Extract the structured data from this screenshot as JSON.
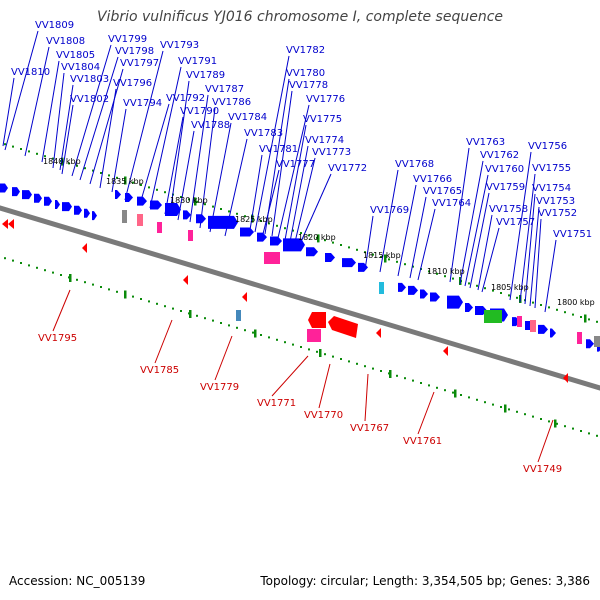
{
  "title": "Vibrio vulnificus YJ016 chromosome I, complete sequence",
  "accession": "Accession: NC_005139",
  "topology": "Topology: circular; Length: 3,354,505 bp; Genes: 3,386",
  "colors": {
    "forward_gene": "#0000ff",
    "reverse_gene": "#ff0000",
    "backbone": "#7a7a7a",
    "tick": "#0a8a0a",
    "label_forward": "#0000cc",
    "label_reverse": "#cc0000",
    "rna_magenta": "#ff2299",
    "rna_green": "#22bb22",
    "rna_cyan": "#22bbdd",
    "gray_feature": "#888888"
  },
  "scale_labels": [
    "1840 kbp",
    "1835 kbp",
    "1830 kbp",
    "1825 kbp",
    "1820 kbp",
    "1815 kbp",
    "1810 kbp",
    "1805 kbp",
    "1800 kbp"
  ],
  "top_labels": [
    "VV1809",
    "VV1808",
    "VV1805",
    "VV1804",
    "VV1810",
    "VV1803",
    "VV1802",
    "VV1799",
    "VV1798",
    "VV1797",
    "VV1796",
    "VV1794",
    "VV1793",
    "VV1791",
    "VV1789",
    "VV1792",
    "VV1790",
    "VV1788",
    "VV1787",
    "VV1786",
    "VV1784",
    "VV1783",
    "VV1782",
    "VV1780",
    "VV1778",
    "VV1776",
    "VV1775",
    "VV1781",
    "VV1774",
    "VV1777",
    "VV1773",
    "VV1772",
    "VV1763",
    "VV1768",
    "VV1766",
    "VV1765",
    "VV1764",
    "VV1769",
    "VV1762",
    "VV1760",
    "VV1759",
    "VV1758",
    "VV1757",
    "VV1756",
    "VV1755",
    "VV1754",
    "VV1753",
    "VV1752",
    "VV1751"
  ],
  "bottom_labels": [
    "VV1795",
    "VV1785",
    "VV1779",
    "VV1771",
    "VV1770",
    "VV1767",
    "VV1761",
    "VV1749"
  ]
}
